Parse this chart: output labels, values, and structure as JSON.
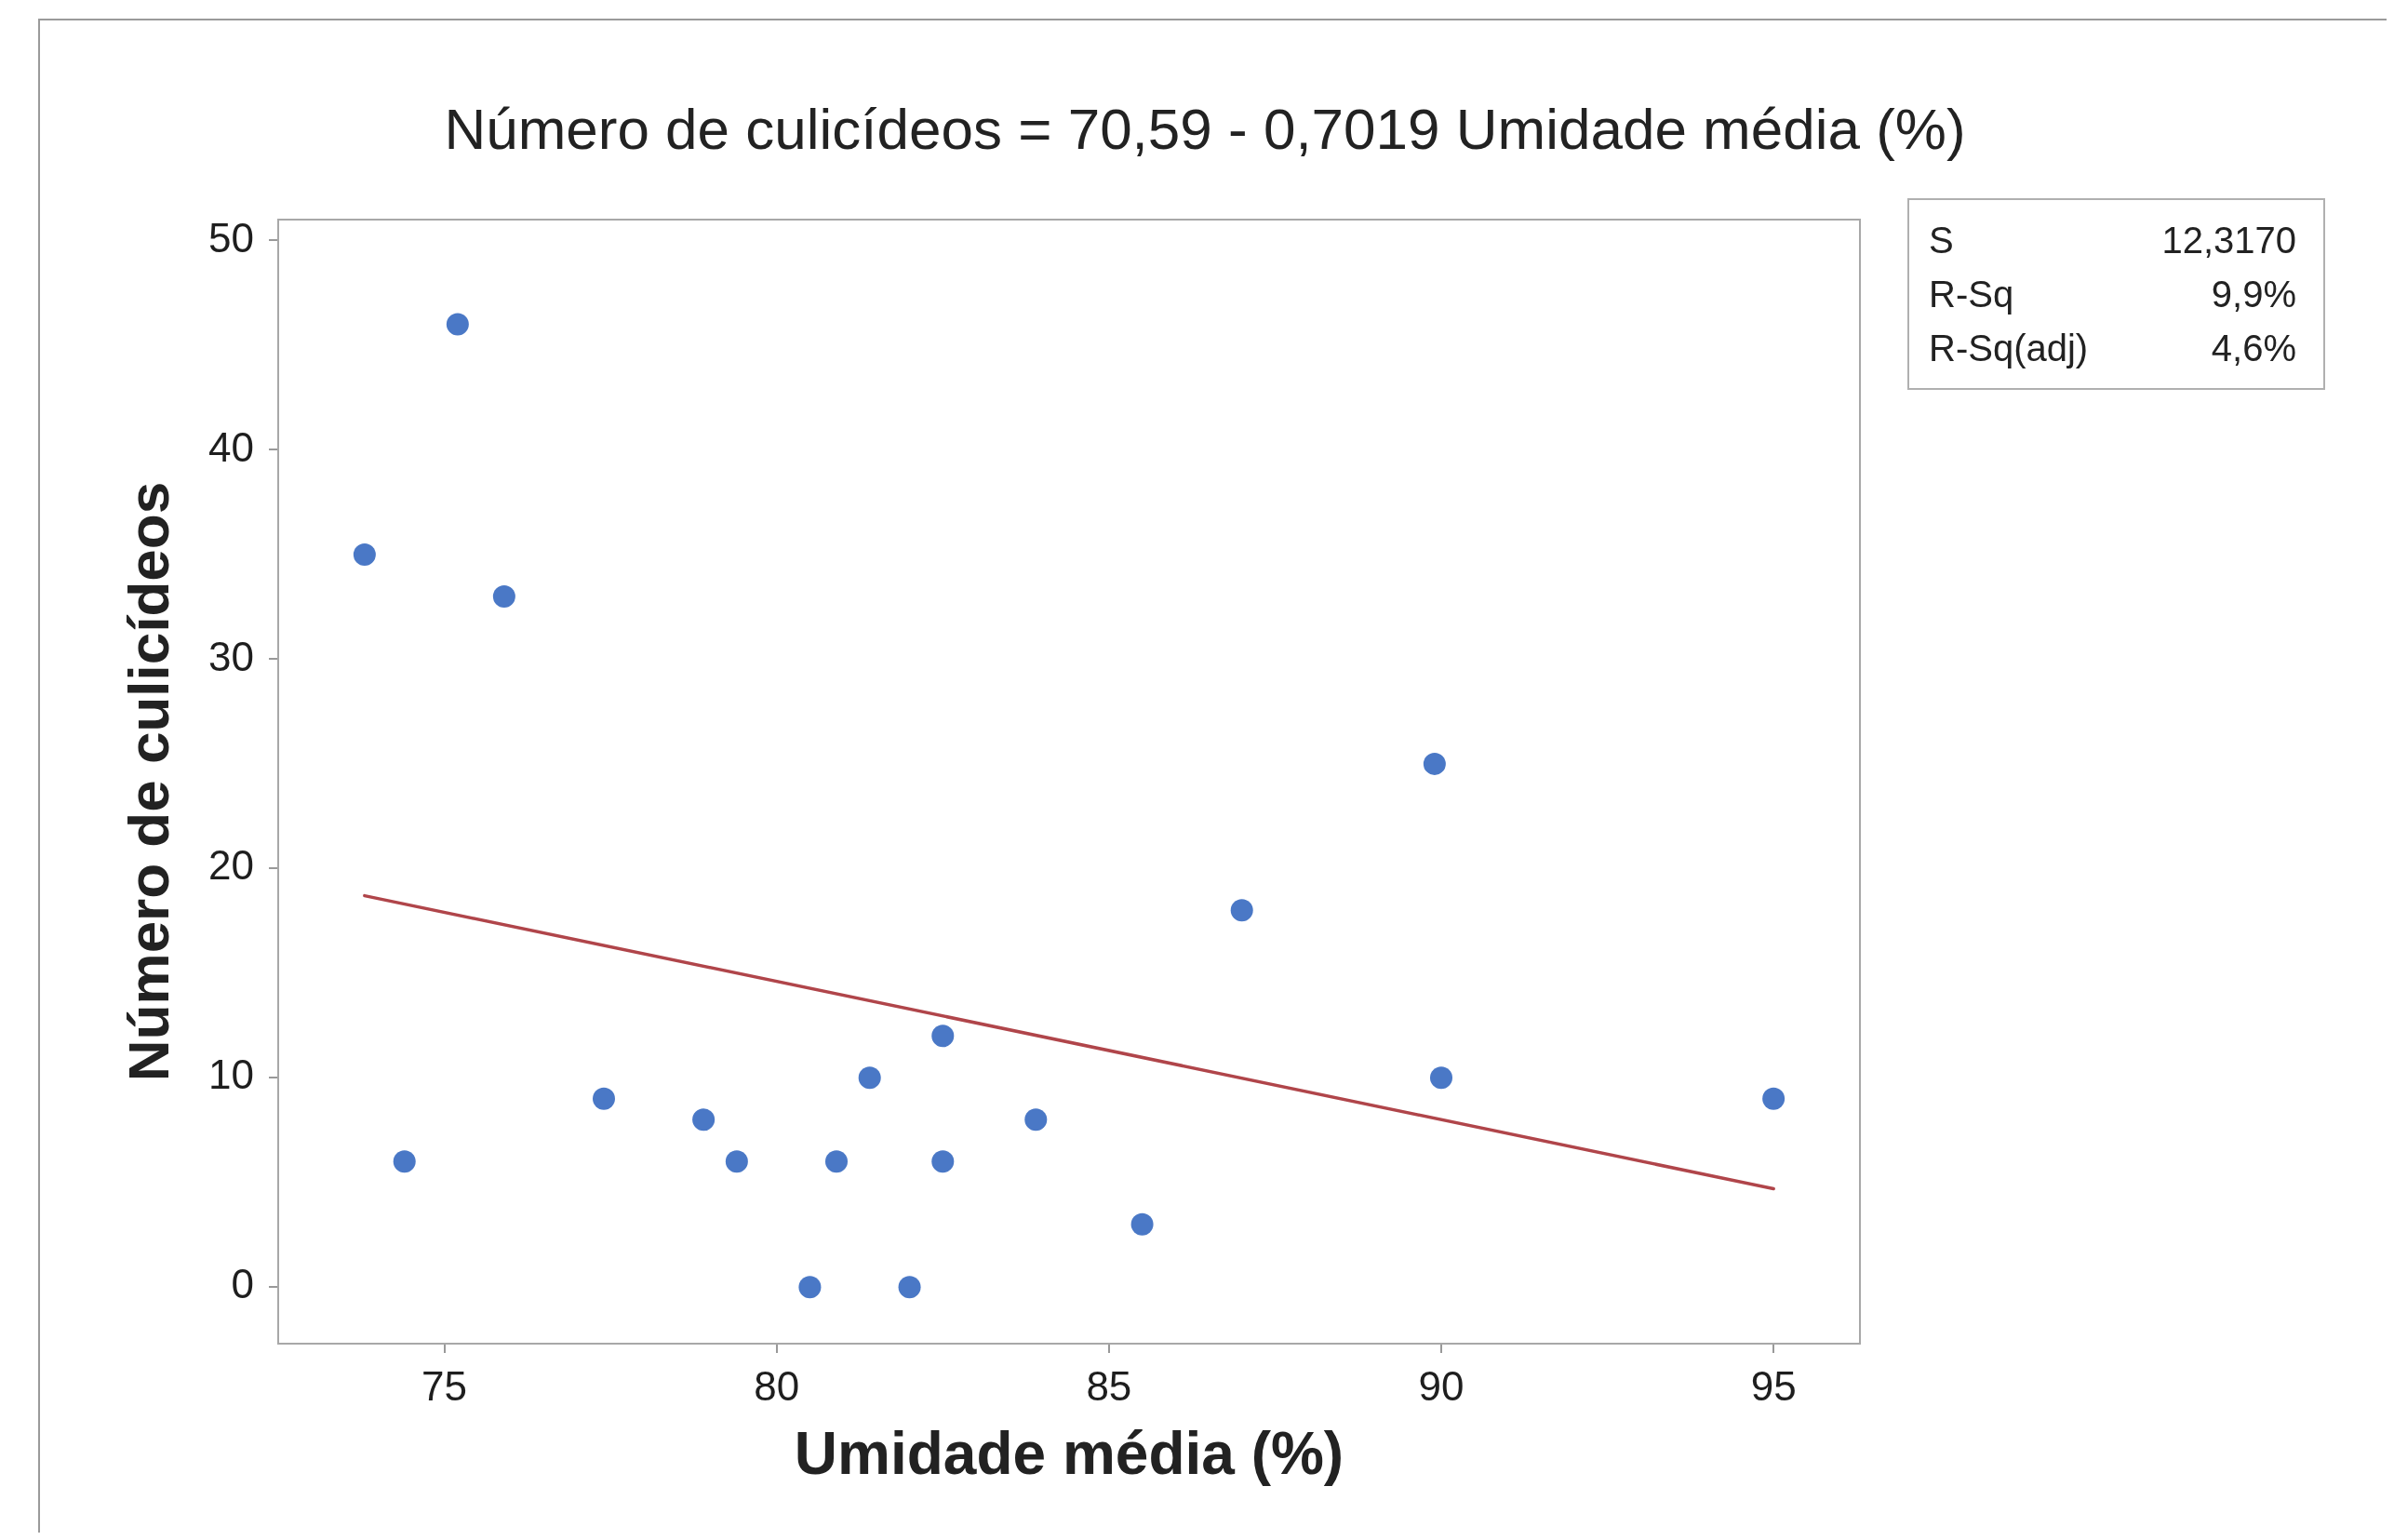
{
  "chart_data": {
    "type": "scatter",
    "title": "Número de culicídeos = 70,59 - 0,7019 Umidade média (%)",
    "xlabel": "Umidade média (%)",
    "ylabel": "Número de culicídeos",
    "xlim": [
      72.5,
      96.3
    ],
    "xticks": [
      75,
      80,
      85,
      90,
      95
    ],
    "ylim": [
      -2.7,
      51
    ],
    "yticks": [
      0,
      10,
      20,
      30,
      40,
      50
    ],
    "marker": "circle",
    "series": [
      {
        "color": "#4a78c6",
        "x": [
          73.8,
          75.2,
          75.9,
          74.4,
          77.4,
          78.9,
          79.4,
          80.5,
          80.9,
          81.4,
          82.0,
          82.5,
          82.5,
          83.9,
          85.5,
          87.0,
          89.9,
          90.0,
          95.0
        ],
        "values": [
          35,
          46,
          33,
          6,
          9,
          8,
          6,
          0,
          6,
          10,
          0,
          12,
          6,
          8,
          3,
          18,
          25,
          10,
          9
        ]
      },
      {
        "type": "line",
        "color": "#b0454a",
        "marker": "none",
        "x": [
          73.8,
          95.0
        ],
        "values": [
          18.7,
          4.7
        ]
      }
    ],
    "annotations": [
      "S 12,3170",
      "R-Sq 9,9%",
      "R-Sq(adj) 4,6%"
    ]
  }
}
